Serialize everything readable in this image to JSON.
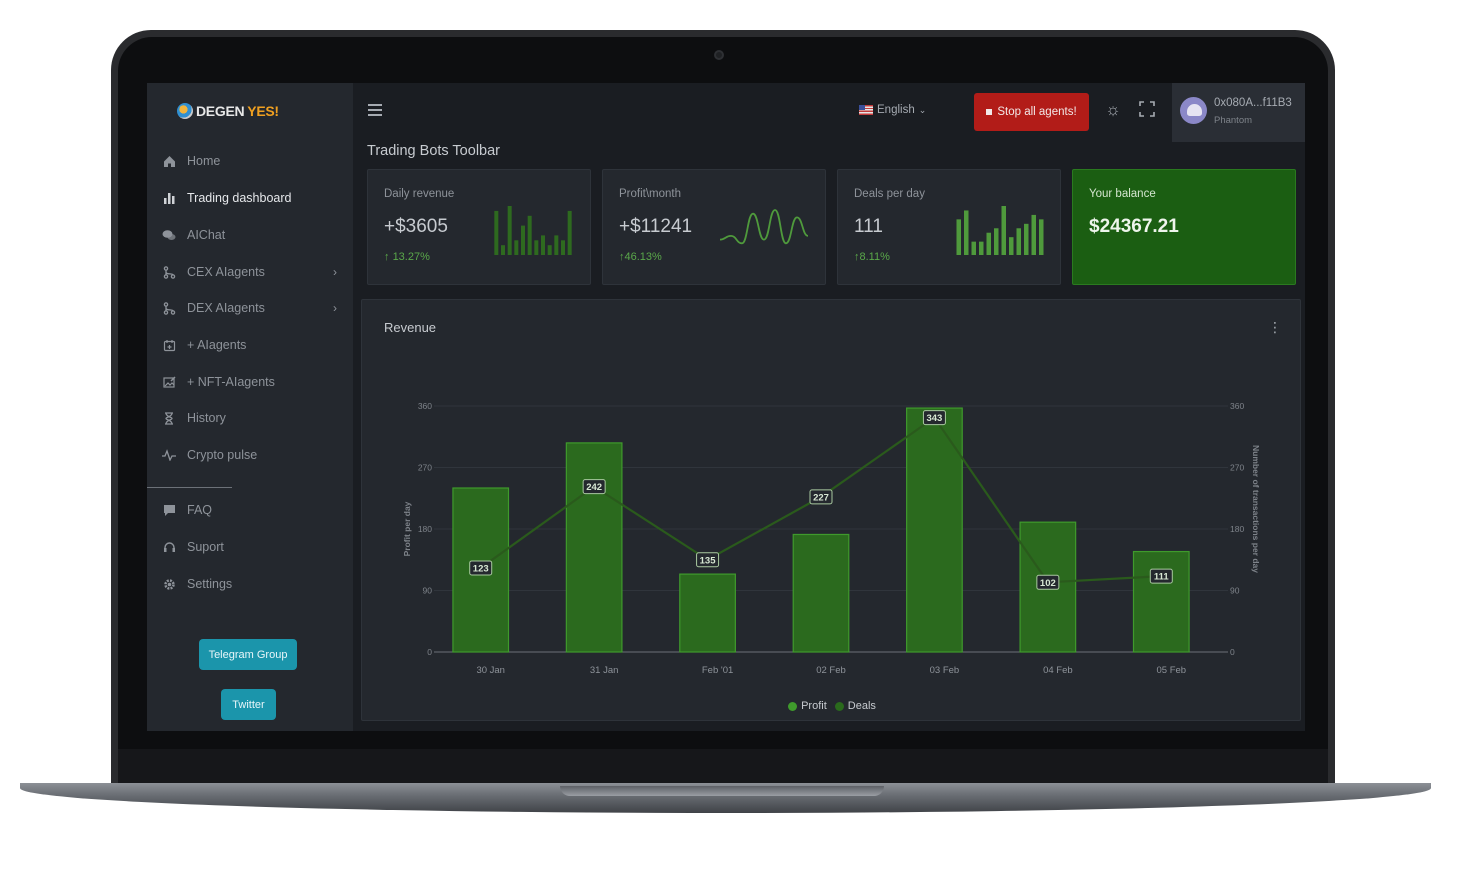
{
  "app": {
    "logo_part1": "DEGEN",
    "logo_part2": "YES!"
  },
  "sidebar": {
    "items": [
      {
        "label": "Home",
        "icon": "home-icon",
        "active": false
      },
      {
        "label": "Trading dashboard",
        "icon": "bar-chart-icon",
        "active": true
      },
      {
        "label": "AIChat",
        "icon": "chat-icon",
        "active": false
      },
      {
        "label": "CEX AIagents",
        "icon": "branch-icon",
        "active": false,
        "has_submenu": true
      },
      {
        "label": "DEX AIagents",
        "icon": "branch-icon",
        "active": false,
        "has_submenu": true
      },
      {
        "label": "+ AIagents",
        "icon": "calendar-add-icon",
        "active": false
      },
      {
        "label": "+ NFT-AIagents",
        "icon": "image-edit-icon",
        "active": false
      },
      {
        "label": "History",
        "icon": "hourglass-icon",
        "active": false
      },
      {
        "label": "Crypto pulse",
        "icon": "pulse-icon",
        "active": false
      }
    ],
    "secondary_items": [
      {
        "label": "FAQ",
        "icon": "help-icon"
      },
      {
        "label": "Suport",
        "icon": "support-icon"
      },
      {
        "label": "Settings",
        "icon": "gear-icon"
      }
    ],
    "telegram_label": "Telegram Group",
    "twitter_label": "Twitter"
  },
  "header": {
    "language": "English",
    "stop_label": "Stop all agents!",
    "account_address": "0x080A...f11B3",
    "account_wallet": "Phantom"
  },
  "page_title": "Trading Bots Toolbar",
  "cards": [
    {
      "label": "Daily revenue",
      "value": "+$3605",
      "change": "13.27%",
      "spark_type": "bar",
      "spark": [
        9,
        2,
        10,
        3,
        6,
        8,
        3,
        4,
        2,
        4,
        3,
        9
      ]
    },
    {
      "label": "Profit\\month",
      "value": "+$11241",
      "change": "46.13%",
      "spark_type": "line",
      "spark": [
        2,
        3,
        1,
        9,
        2,
        10,
        1,
        8,
        3
      ]
    },
    {
      "label": "Deals per day",
      "value": "111",
      "change": "8.11%",
      "spark_type": "bar",
      "spark": [
        8,
        10,
        3,
        3,
        5,
        6,
        11,
        4,
        6,
        7,
        9,
        8
      ]
    }
  ],
  "balance": {
    "label": "Your balance",
    "value": "$24367.21"
  },
  "colors": {
    "accent_green": "#2f7a1f",
    "stop_red": "#b21c18",
    "button_teal": "#1b95ab"
  },
  "revenue": {
    "title": "Revenue",
    "chart_data": {
      "type": "bar",
      "categories": [
        "30 Jan",
        "31 Jan",
        "Feb '01",
        "02 Feb",
        "03 Feb",
        "04 Feb",
        "05 Feb"
      ],
      "series": [
        {
          "name": "Profit",
          "type": "bar",
          "values": [
            240,
            306,
            114,
            172,
            357,
            190,
            147
          ]
        },
        {
          "name": "Deals",
          "type": "line",
          "values": [
            123,
            242,
            135,
            227,
            343,
            102,
            111
          ]
        }
      ],
      "ylabel": "Profit per day",
      "y2label": "Number of transactions per day",
      "ylim": [
        0,
        360
      ],
      "yticks": [
        "0",
        "90",
        "180",
        "270",
        "360"
      ],
      "legend": "bottom",
      "grid": true
    }
  }
}
